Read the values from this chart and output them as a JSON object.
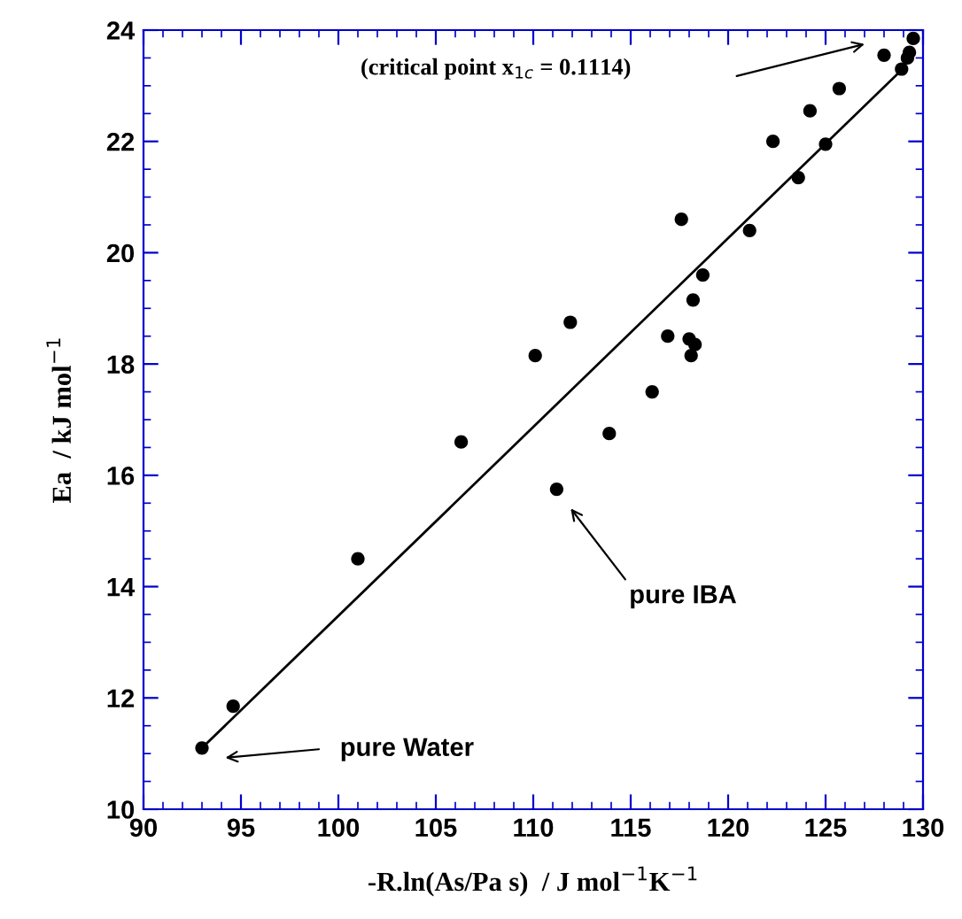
{
  "chart_data": {
    "type": "scatter",
    "xlabel": "-R.ln(As/Pa s)  / J mol$^{−1}$K$^{−1}$",
    "ylabel": "Ea  / kJ mol$^{−1}$",
    "xlim": [
      90,
      130
    ],
    "xticks": [
      90,
      95,
      100,
      105,
      110,
      115,
      120,
      125,
      130
    ],
    "ylim": [
      10,
      24
    ],
    "yticks": [
      10,
      12,
      14,
      16,
      18,
      20,
      22,
      24
    ],
    "grid": false,
    "marker": "circle",
    "series": [
      {
        "type": "scatter",
        "color": "#000000",
        "x": [
          93,
          94.6,
          101,
          106.3,
          110.1,
          111.9,
          111.2,
          113.9,
          116.1,
          116.9,
          117.6,
          118,
          118.1,
          118.2,
          118.3,
          118.7,
          121.1,
          122.3,
          123.6,
          124.2,
          125,
          125.7,
          128,
          128.9,
          129.2,
          129.3,
          null,
          null,
          129.5
        ],
        "values": [
          11.1,
          11.85,
          14.5,
          16.6,
          18.15,
          18.75,
          15.75,
          16.75,
          17.5,
          18.5,
          20.6,
          18.45,
          18.15,
          19.15,
          18.35,
          19.6,
          20.4,
          22.0,
          21.35,
          22.55,
          21.95,
          22.95,
          23.55,
          23.3,
          23.5,
          23.6,
          null,
          null,
          23.85
        ]
      },
      {
        "type": "line",
        "color": "#000000",
        "marker": "none",
        "line_style": "solid",
        "x": [
          93,
          129.1
        ],
        "values": [
          11.1,
          23.35
        ]
      }
    ],
    "annotations": [
      "(critical point x$_{1c}$ = 0.1114)",
      "pure IBA",
      "pure Water"
    ]
  }
}
